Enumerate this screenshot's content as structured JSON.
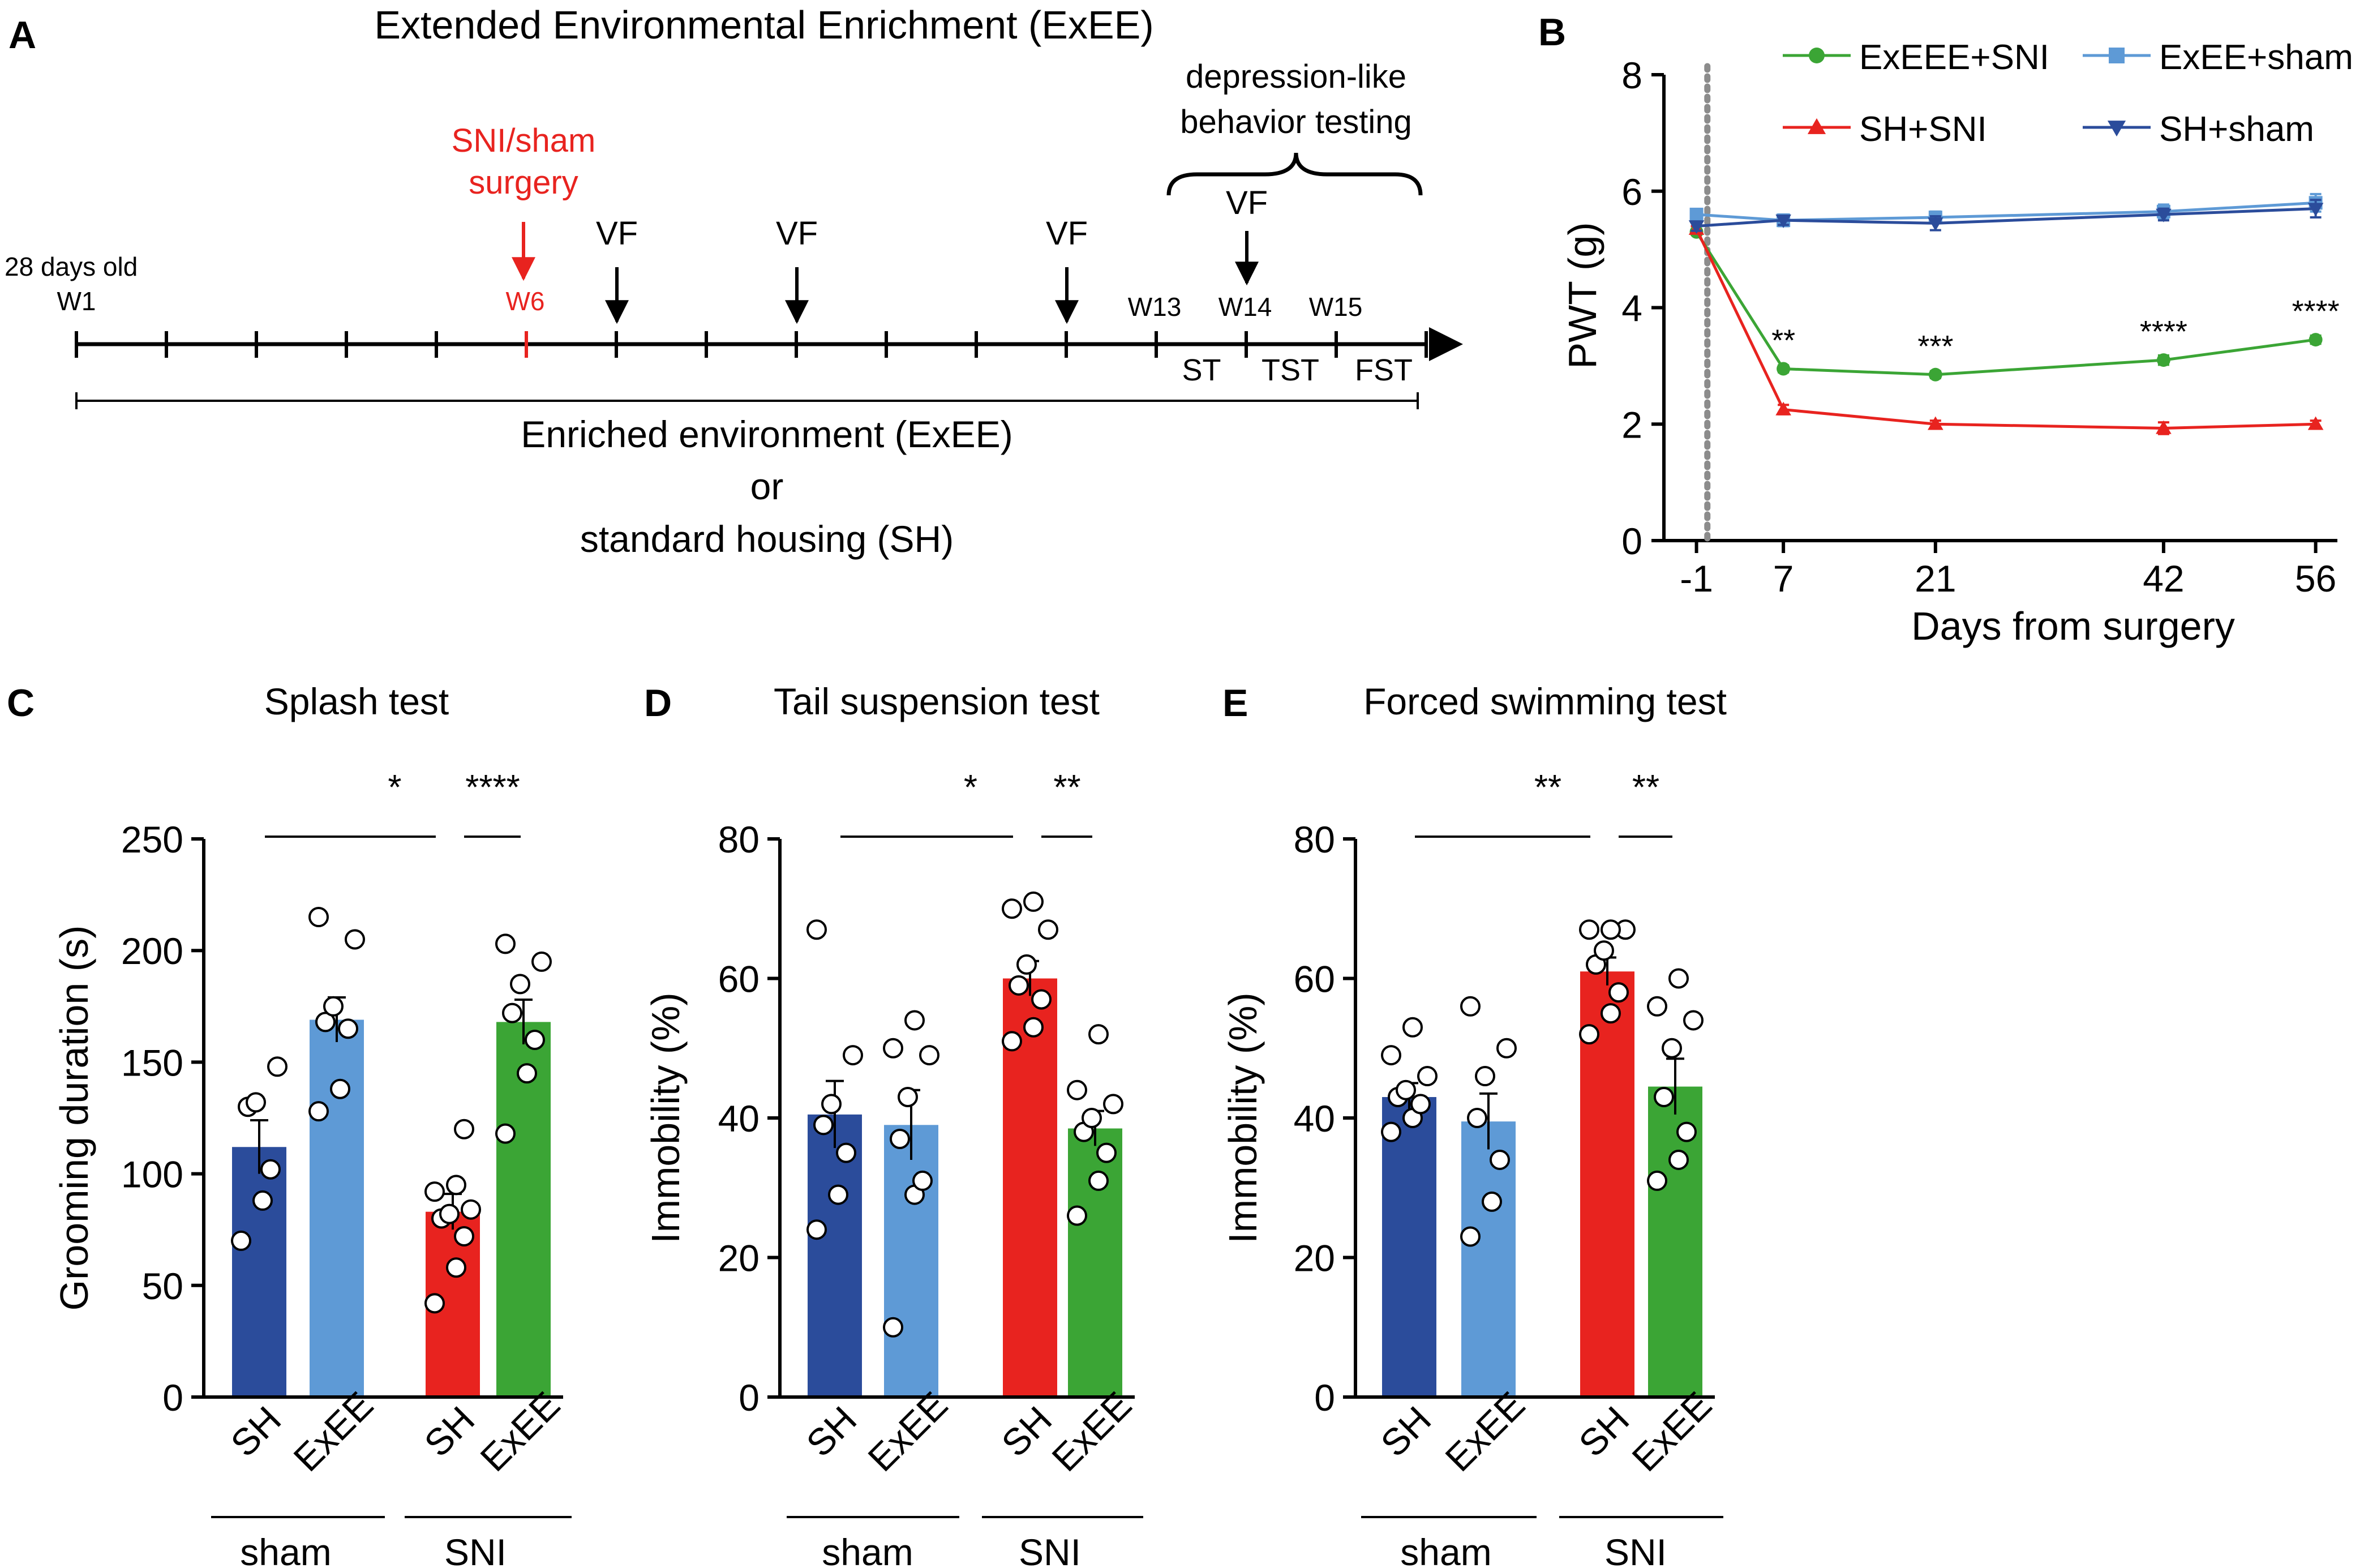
{
  "colors": {
    "sh_sham": "#2b4c9b",
    "exee_sham": "#5e9ad6",
    "sh_sni": "#e8231f",
    "exee_sni": "#3ba535",
    "surgery": "#e8231f",
    "dashed": "#8c8c8c",
    "ink": "#000000"
  },
  "panelA": {
    "label": "A",
    "title": "Extended Environmental Enrichment (ExEE)",
    "surgery_label_1": "SNI/sham",
    "surgery_label_2": "surgery",
    "depression_label_1": "depression-like",
    "depression_label_2": "behavior testing",
    "start_label": "28 days old",
    "week_labels": {
      "w1": "W1",
      "w6": "W6",
      "w13": "W13",
      "w14": "W14",
      "w15": "W15"
    },
    "vf_label": "VF",
    "test_labels": [
      "ST",
      "TST",
      "FST"
    ],
    "housing_1": "Enriched environment (ExEE)",
    "housing_2": "or",
    "housing_3": "standard housing (SH)"
  },
  "chart_data": [
    {
      "panel": "B",
      "type": "line",
      "xlabel": "Days from surgery",
      "ylabel": "PWT (g)",
      "x": [
        -1,
        7,
        21,
        42,
        56
      ],
      "x_tick_labels": [
        "-1",
        "7",
        "21",
        "42",
        "56"
      ],
      "ylim": [
        0,
        8
      ],
      "yticks": [
        0,
        2,
        4,
        6,
        8
      ],
      "surgery_day": 0,
      "series": [
        {
          "name": "ExEEE+SNI",
          "color": "#3ba535",
          "marker": "circle",
          "values": [
            5.3,
            2.95,
            2.85,
            3.1,
            3.45
          ],
          "errors": [
            0.05,
            0.06,
            0.06,
            0.08,
            0.07
          ]
        },
        {
          "name": "ExEE+sham",
          "color": "#5e9ad6",
          "marker": "square",
          "values": [
            5.6,
            5.5,
            5.55,
            5.65,
            5.8
          ],
          "errors": [
            0.08,
            0.1,
            0.1,
            0.12,
            0.15
          ]
        },
        {
          "name": "SH+SNI",
          "color": "#e8231f",
          "marker": "triangle-up",
          "values": [
            5.35,
            2.25,
            2.0,
            1.93,
            2.0
          ],
          "errors": [
            0.05,
            0.08,
            0.06,
            0.1,
            0.06
          ]
        },
        {
          "name": "SH+sham",
          "color": "#2b4c9b",
          "marker": "triangle-down",
          "values": [
            5.4,
            5.5,
            5.45,
            5.6,
            5.7
          ],
          "errors": [
            0.08,
            0.08,
            0.12,
            0.1,
            0.15
          ]
        }
      ],
      "significance": [
        {
          "x": 7,
          "label": "**"
        },
        {
          "x": 21,
          "label": "***"
        },
        {
          "x": 42,
          "label": "****"
        },
        {
          "x": 56,
          "label": "****"
        }
      ]
    },
    {
      "panel": "C",
      "type": "bar",
      "title": "Splash test",
      "ylabel": "Grooming duration (s)",
      "ylim": [
        0,
        250
      ],
      "yticks": [
        0,
        50,
        100,
        150,
        200,
        250
      ],
      "categories": [
        "SH",
        "ExEE",
        "SH",
        "ExEE"
      ],
      "groups": [
        "sham",
        "SNI"
      ],
      "values": [
        112,
        169,
        83,
        168
      ],
      "errors": [
        12,
        10,
        8,
        10
      ],
      "colors": [
        "#2b4c9b",
        "#5e9ad6",
        "#e8231f",
        "#3ba535"
      ],
      "points": [
        [
          70,
          88,
          102,
          130,
          132,
          148
        ],
        [
          128,
          138,
          165,
          168,
          175,
          205,
          215
        ],
        [
          42,
          58,
          72,
          80,
          82,
          84,
          92,
          95,
          120
        ],
        [
          118,
          145,
          160,
          172,
          185,
          195,
          203
        ]
      ],
      "significance": [
        {
          "label": "*",
          "from": 0,
          "to": 2
        },
        {
          "label": "****",
          "from": 2,
          "to": 3
        }
      ]
    },
    {
      "panel": "D",
      "type": "bar",
      "title": "Tail suspension test",
      "ylabel": "Immobility (%)",
      "ylim": [
        0,
        80
      ],
      "yticks": [
        0,
        20,
        40,
        60,
        80
      ],
      "categories": [
        "SH",
        "ExEE",
        "SH",
        "ExEE"
      ],
      "groups": [
        "sham",
        "SNI"
      ],
      "values": [
        40.5,
        39,
        60,
        38.5
      ],
      "errors": [
        4.8,
        5,
        2.5,
        2.5
      ],
      "colors": [
        "#2b4c9b",
        "#5e9ad6",
        "#e8231f",
        "#3ba535"
      ],
      "points": [
        [
          24,
          29,
          35,
          39,
          42,
          49,
          67
        ],
        [
          10,
          29,
          31,
          37,
          43,
          49,
          50,
          54
        ],
        [
          51,
          53,
          57,
          59,
          62,
          67,
          70,
          71
        ],
        [
          26,
          31,
          35,
          38,
          40,
          42,
          44,
          52
        ]
      ],
      "significance": [
        {
          "label": "*",
          "from": 0,
          "to": 2
        },
        {
          "label": "**",
          "from": 2,
          "to": 3
        }
      ]
    },
    {
      "panel": "E",
      "type": "bar",
      "title": "Forced swimming test",
      "ylabel": "Immobility (%)",
      "ylim": [
        0,
        80
      ],
      "yticks": [
        0,
        20,
        40,
        60,
        80
      ],
      "categories": [
        "SH",
        "ExEE",
        "SH",
        "ExEE"
      ],
      "groups": [
        "sham",
        "SNI"
      ],
      "values": [
        43,
        39.5,
        61,
        44.5
      ],
      "errors": [
        2,
        4,
        2,
        4
      ],
      "colors": [
        "#2b4c9b",
        "#5e9ad6",
        "#e8231f",
        "#3ba535"
      ],
      "points": [
        [
          38,
          40,
          42,
          43,
          44,
          46,
          49,
          53
        ],
        [
          23,
          28,
          34,
          40,
          46,
          50,
          56
        ],
        [
          52,
          55,
          58,
          62,
          64,
          67,
          67,
          67
        ],
        [
          31,
          34,
          38,
          43,
          50,
          54,
          56,
          60
        ]
      ],
      "significance": [
        {
          "label": "**",
          "from": 0,
          "to": 2
        },
        {
          "label": "**",
          "from": 2,
          "to": 3
        }
      ]
    }
  ]
}
